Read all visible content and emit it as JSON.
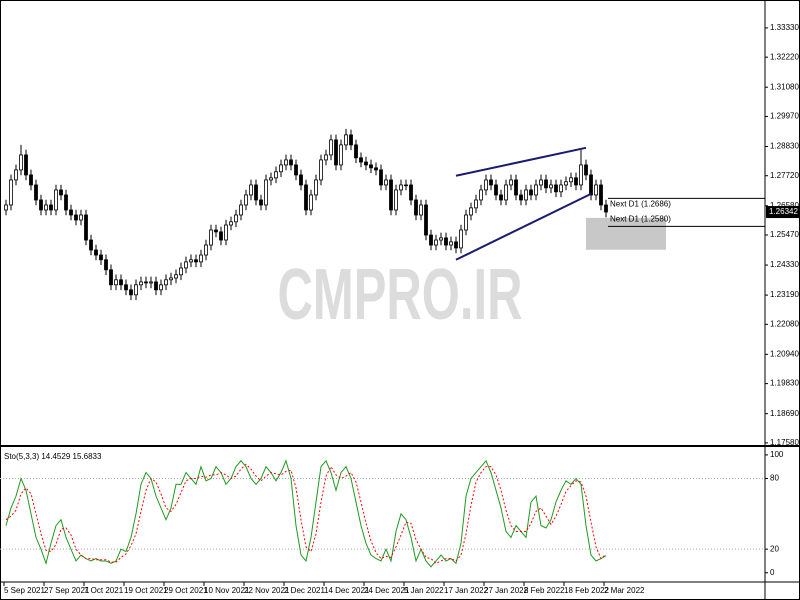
{
  "chart_data": [
    {
      "type": "candlestick",
      "watermark": "CMPRO.IR",
      "categories": [
        "5 Sep 2021",
        null,
        null,
        null,
        null,
        null,
        null,
        null,
        "27 Sep 2021",
        null,
        null,
        null,
        null,
        null,
        null,
        null,
        "7 Oct 2021",
        null,
        null,
        null,
        null,
        null,
        null,
        null,
        "19 Oct 2021",
        null,
        null,
        null,
        null,
        null,
        null,
        null,
        "29 Oct 2021",
        null,
        null,
        null,
        null,
        null,
        null,
        null,
        "10 Nov 2021",
        null,
        null,
        null,
        null,
        null,
        null,
        null,
        "22 Nov 2021",
        null,
        null,
        null,
        null,
        null,
        null,
        null,
        "2 Dec 2021",
        null,
        null,
        null,
        null,
        null,
        null,
        null,
        "14 Dec 2021",
        null,
        null,
        null,
        null,
        null,
        null,
        null,
        "24 Dec 2021",
        null,
        null,
        null,
        null,
        null,
        null,
        null,
        "5 Jan 2022",
        null,
        null,
        null,
        null,
        null,
        null,
        null,
        "17 Jan 2022",
        null,
        null,
        null,
        null,
        null,
        null,
        null,
        "27 Jan 2022",
        null,
        null,
        null,
        null,
        null,
        null,
        null,
        "8 Feb 2022",
        null,
        null,
        null,
        null,
        null,
        null,
        null,
        "18 Feb 2022",
        null,
        null,
        null,
        null,
        null,
        null,
        null,
        "2 Mar 2022"
      ],
      "open": [
        1.2642,
        1.2661,
        1.2756,
        1.2794,
        1.2851,
        1.2775,
        1.2737,
        1.268,
        1.2642,
        1.2661,
        1.2642,
        1.2718,
        1.2699,
        1.2642,
        1.2623,
        1.2604,
        1.2623,
        1.2528,
        1.249,
        1.2471,
        1.2453,
        1.2415,
        1.2358,
        1.2377,
        1.2358,
        1.2339,
        1.232,
        1.2358,
        1.2369,
        1.2365,
        1.2369,
        1.2339,
        1.2358,
        1.2377,
        1.2384,
        1.2396,
        1.2422,
        1.2445,
        1.2453,
        1.2445,
        1.2471,
        1.2509,
        1.2566,
        1.2559,
        1.2528,
        1.2585,
        1.2597,
        1.2623,
        1.2661,
        1.2699,
        1.2737,
        1.268,
        1.2661,
        1.2756,
        1.2764,
        1.2787,
        1.2813,
        1.2832,
        1.2813,
        1.2775,
        1.2737,
        1.2642,
        1.2699,
        1.2756,
        1.2832,
        1.2851,
        1.2908,
        1.2813,
        1.2889,
        1.2927,
        1.2889,
        1.284,
        1.2824,
        1.2813,
        1.2802,
        1.2794,
        1.2737,
        1.2756,
        1.2642,
        1.2718,
        1.2737,
        1.2737,
        1.268,
        1.2623,
        1.2661,
        1.2547,
        1.2509,
        1.2528,
        1.2536,
        1.2509,
        1.2521,
        1.2498,
        1.2566,
        1.2623,
        1.265,
        1.268,
        1.2718,
        1.2756,
        1.2737,
        1.2699,
        1.268,
        1.2737,
        1.2756,
        1.2699,
        1.268,
        1.2718,
        1.2699,
        1.2737,
        1.2756,
        1.2726,
        1.2737,
        1.2711,
        1.2737,
        1.2749,
        1.2764,
        1.2737,
        1.2813,
        1.2775,
        1.2699,
        1.2737,
        1.2661
      ],
      "high": [
        1.2681,
        1.2776,
        1.2814,
        1.2889,
        1.2871,
        1.2795,
        1.2757,
        1.27,
        1.2681,
        1.2681,
        1.2738,
        1.2738,
        1.2719,
        1.2662,
        1.2643,
        1.2643,
        1.2643,
        1.2548,
        1.251,
        1.2491,
        1.2473,
        1.2435,
        1.2397,
        1.2397,
        1.2378,
        1.2359,
        1.2378,
        1.2389,
        1.2389,
        1.2389,
        1.2389,
        1.2378,
        1.2397,
        1.2404,
        1.2416,
        1.2442,
        1.2465,
        1.2473,
        1.2473,
        1.2491,
        1.2529,
        1.2586,
        1.2586,
        1.2579,
        1.2605,
        1.2617,
        1.2643,
        1.2681,
        1.2719,
        1.2757,
        1.2757,
        1.27,
        1.2776,
        1.2784,
        1.2807,
        1.2833,
        1.2852,
        1.2852,
        1.2833,
        1.2795,
        1.2757,
        1.2719,
        1.2776,
        1.2852,
        1.2871,
        1.2928,
        1.2928,
        1.2909,
        1.295,
        1.2947,
        1.2909,
        1.286,
        1.2844,
        1.2833,
        1.2822,
        1.2814,
        1.2776,
        1.2776,
        1.2738,
        1.2757,
        1.2757,
        1.2757,
        1.27,
        1.2681,
        1.2681,
        1.2567,
        1.2548,
        1.2556,
        1.2556,
        1.2541,
        1.2541,
        1.2586,
        1.2643,
        1.267,
        1.27,
        1.2738,
        1.2776,
        1.2776,
        1.2757,
        1.2719,
        1.2757,
        1.2776,
        1.2776,
        1.2719,
        1.2738,
        1.2738,
        1.2757,
        1.2776,
        1.2776,
        1.2757,
        1.2757,
        1.2757,
        1.2769,
        1.2784,
        1.2784,
        1.287,
        1.2833,
        1.2795,
        1.2757,
        1.2757,
        1.2681
      ],
      "low": [
        1.2622,
        1.2641,
        1.2736,
        1.2774,
        1.2755,
        1.2717,
        1.266,
        1.2622,
        1.2622,
        1.2622,
        1.2622,
        1.2679,
        1.2622,
        1.2603,
        1.2584,
        1.2584,
        1.2508,
        1.247,
        1.2451,
        1.2433,
        1.2395,
        1.2338,
        1.2338,
        1.2338,
        1.2319,
        1.23,
        1.23,
        1.2338,
        1.2345,
        1.2345,
        1.2319,
        1.2319,
        1.2338,
        1.2357,
        1.2364,
        1.2376,
        1.2402,
        1.2425,
        1.2425,
        1.2425,
        1.2451,
        1.2489,
        1.2539,
        1.2508,
        1.2508,
        1.2565,
        1.2577,
        1.2603,
        1.2641,
        1.2679,
        1.266,
        1.2641,
        1.2641,
        1.2736,
        1.2744,
        1.2767,
        1.2793,
        1.2793,
        1.2755,
        1.2717,
        1.2622,
        1.2622,
        1.2679,
        1.2736,
        1.2812,
        1.2831,
        1.2793,
        1.2793,
        1.2869,
        1.2869,
        1.282,
        1.2804,
        1.2793,
        1.2782,
        1.2774,
        1.2717,
        1.2717,
        1.2622,
        1.2622,
        1.2698,
        1.2717,
        1.266,
        1.2603,
        1.2603,
        1.2527,
        1.2489,
        1.2489,
        1.2508,
        1.2489,
        1.2489,
        1.2478,
        1.2478,
        1.2546,
        1.2603,
        1.263,
        1.266,
        1.2698,
        1.2717,
        1.2679,
        1.266,
        1.266,
        1.2717,
        1.2679,
        1.266,
        1.266,
        1.2679,
        1.2679,
        1.2717,
        1.2706,
        1.2706,
        1.2691,
        1.2691,
        1.2717,
        1.2729,
        1.2717,
        1.2717,
        1.2755,
        1.2679,
        1.2679,
        1.2641,
        1.2614
      ],
      "close": [
        1.2661,
        1.2756,
        1.2794,
        1.2851,
        1.2775,
        1.2737,
        1.268,
        1.2642,
        1.2661,
        1.2642,
        1.2718,
        1.2699,
        1.2642,
        1.2623,
        1.2604,
        1.2623,
        1.2528,
        1.249,
        1.2471,
        1.2453,
        1.2415,
        1.2358,
        1.2377,
        1.2358,
        1.2339,
        1.232,
        1.2358,
        1.2369,
        1.2365,
        1.2369,
        1.2339,
        1.2358,
        1.2377,
        1.2384,
        1.2396,
        1.2422,
        1.2445,
        1.2453,
        1.2445,
        1.2471,
        1.2509,
        1.2566,
        1.2559,
        1.2528,
        1.2585,
        1.2597,
        1.2623,
        1.2661,
        1.2699,
        1.2737,
        1.268,
        1.2661,
        1.2756,
        1.2764,
        1.2787,
        1.2813,
        1.2832,
        1.2813,
        1.2775,
        1.2737,
        1.2642,
        1.2699,
        1.2756,
        1.2832,
        1.2851,
        1.2908,
        1.2813,
        1.2889,
        1.2927,
        1.2889,
        1.284,
        1.2824,
        1.2813,
        1.2802,
        1.2794,
        1.2737,
        1.2756,
        1.2642,
        1.2718,
        1.2737,
        1.2737,
        1.268,
        1.2623,
        1.2661,
        1.2547,
        1.2509,
        1.2528,
        1.2536,
        1.2509,
        1.2521,
        1.2498,
        1.2566,
        1.2623,
        1.265,
        1.268,
        1.2718,
        1.2756,
        1.2737,
        1.2699,
        1.268,
        1.2737,
        1.2756,
        1.2699,
        1.268,
        1.2718,
        1.2699,
        1.2737,
        1.2756,
        1.2726,
        1.2737,
        1.2711,
        1.2737,
        1.2749,
        1.2764,
        1.2737,
        1.2813,
        1.2775,
        1.2699,
        1.2737,
        1.2661,
        1.26342
      ],
      "up_color": "#ffffff",
      "down_color": "#000000",
      "outline_color": "#000000",
      "ylim": [
        1.175,
        1.342
      ],
      "yticks": [
        {
          "value": 1.3333,
          "label": "1.33330"
        },
        {
          "value": 1.3222,
          "label": "1.32220"
        },
        {
          "value": 1.3108,
          "label": "1.31080"
        },
        {
          "value": 1.2997,
          "label": "1.29970"
        },
        {
          "value": 1.2883,
          "label": "1.28830"
        },
        {
          "value": 1.2772,
          "label": "1.27720"
        },
        {
          "value": 1.2658,
          "label": "1.26580"
        },
        {
          "value": 1.2547,
          "label": "1.25470"
        },
        {
          "value": 1.2433,
          "label": "1.24330"
        },
        {
          "value": 1.2319,
          "label": "1.23190"
        },
        {
          "value": 1.2208,
          "label": "1.22080"
        },
        {
          "value": 1.2094,
          "label": "1.20940"
        },
        {
          "value": 1.1983,
          "label": "1.19830"
        },
        {
          "value": 1.1869,
          "label": "1.18690"
        },
        {
          "value": 1.1758,
          "label": "1.17580"
        }
      ],
      "trendlines": [
        {
          "x": [
            90,
            116
          ],
          "y": [
            1.2772,
            1.2878
          ],
          "color": "#1a1a6e"
        },
        {
          "x": [
            90,
            117
          ],
          "y": [
            1.2453,
            1.2703
          ],
          "color": "#1a1a6e"
        }
      ],
      "hlines": [
        {
          "value": 1.2686,
          "label": "Next D1 (1.2686)"
        },
        {
          "value": 1.258,
          "label": "Next D1 (1.2580)"
        }
      ],
      "zone": {
        "x": [
          116,
          132
        ],
        "ylim": [
          1.2491,
          1.2612
        ],
        "color": "#c8c8c8"
      },
      "last_price": {
        "value": 1.26342,
        "label": "1.26342"
      }
    },
    {
      "type": "line",
      "title": "Sto(5,3,3) 14.4529 15.6833",
      "series": [
        {
          "color": "#1f9a1f",
          "dashed": false,
          "values": [
            40,
            55,
            65,
            80,
            70,
            50,
            30,
            20,
            8,
            25,
            40,
            45,
            30,
            20,
            10,
            15,
            12,
            10,
            12,
            10,
            10,
            8,
            10,
            20,
            18,
            30,
            50,
            75,
            85,
            80,
            65,
            55,
            45,
            55,
            75,
            75,
            85,
            80,
            75,
            90,
            78,
            80,
            90,
            85,
            75,
            80,
            90,
            95,
            90,
            80,
            75,
            80,
            90,
            85,
            78,
            85,
            95,
            80,
            40,
            15,
            10,
            30,
            60,
            90,
            95,
            85,
            70,
            85,
            90,
            80,
            60,
            40,
            25,
            15,
            12,
            10,
            20,
            10,
            35,
            50,
            45,
            30,
            10,
            20,
            10,
            5,
            10,
            15,
            10,
            12,
            8,
            25,
            65,
            80,
            85,
            90,
            95,
            85,
            70,
            55,
            35,
            30,
            40,
            35,
            30,
            60,
            65,
            40,
            38,
            45,
            60,
            70,
            78,
            75,
            80,
            75,
            40,
            15,
            10,
            12,
            14.4529
          ]
        },
        {
          "color": "#ff0000",
          "dashed": true,
          "values": [
            45,
            48,
            53,
            67,
            72,
            67,
            50,
            33,
            19,
            18,
            24,
            37,
            38,
            32,
            20,
            15,
            12,
            12,
            11,
            11,
            11,
            9,
            9,
            13,
            16,
            23,
            33,
            52,
            70,
            80,
            77,
            67,
            55,
            52,
            58,
            68,
            78,
            80,
            80,
            82,
            81,
            83,
            83,
            85,
            83,
            80,
            82,
            88,
            92,
            88,
            82,
            78,
            82,
            85,
            84,
            83,
            86,
            87,
            72,
            45,
            22,
            18,
            33,
            60,
            82,
            90,
            83,
            80,
            82,
            85,
            77,
            60,
            42,
            27,
            17,
            12,
            14,
            13,
            22,
            32,
            43,
            42,
            28,
            20,
            13,
            12,
            8,
            10,
            12,
            12,
            10,
            15,
            33,
            57,
            77,
            85,
            90,
            90,
            83,
            70,
            53,
            40,
            35,
            35,
            35,
            42,
            52,
            55,
            48,
            41,
            48,
            58,
            69,
            74,
            78,
            77,
            65,
            43,
            22,
            12,
            15.6833
          ]
        }
      ],
      "ylim": [
        -7,
        105
      ],
      "yticks": [
        100,
        80,
        20,
        0
      ],
      "levels": [
        20,
        80
      ]
    }
  ]
}
